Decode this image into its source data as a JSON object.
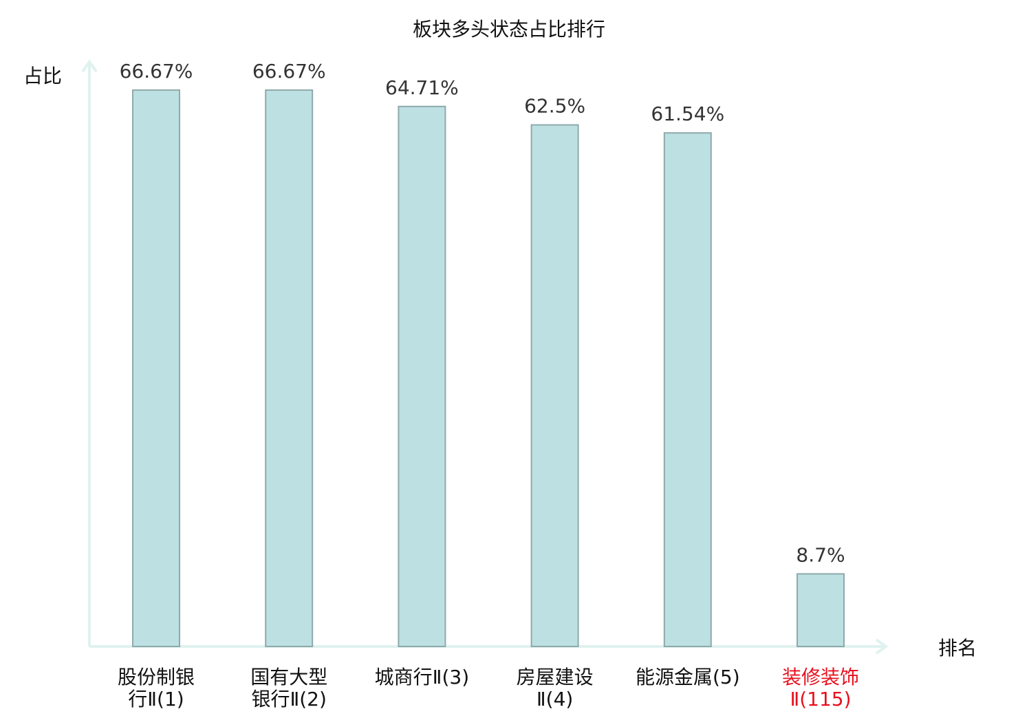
{
  "chart_data": {
    "type": "bar",
    "title": "板块多头状态占比排行",
    "ylabel": "占比",
    "xlabel": "排名",
    "categories": [
      [
        "股份制银",
        "行Ⅱ(1)"
      ],
      [
        "国有大型",
        "银行Ⅱ(2)"
      ],
      [
        "城商行Ⅱ(3)"
      ],
      [
        "房屋建设",
        "Ⅱ(4)"
      ],
      [
        "能源金属(5)"
      ],
      [
        "装修装饰",
        "Ⅱ(115)"
      ]
    ],
    "values": [
      66.67,
      66.67,
      64.71,
      62.5,
      61.54,
      8.7
    ],
    "value_labels": [
      "66.67%",
      "66.67%",
      "64.71%",
      "62.5%",
      "61.54%",
      "8.7%"
    ],
    "highlight_index": 5,
    "ylim": [
      0,
      66.67
    ],
    "grid": false,
    "legend": "none",
    "colors": {
      "bar_fill": "#bde0e3",
      "bar_stroke": "#8fa9ab",
      "axis": "#dff2ef",
      "text": "#333333",
      "label": "#111111",
      "highlight": "#e8111e"
    }
  }
}
